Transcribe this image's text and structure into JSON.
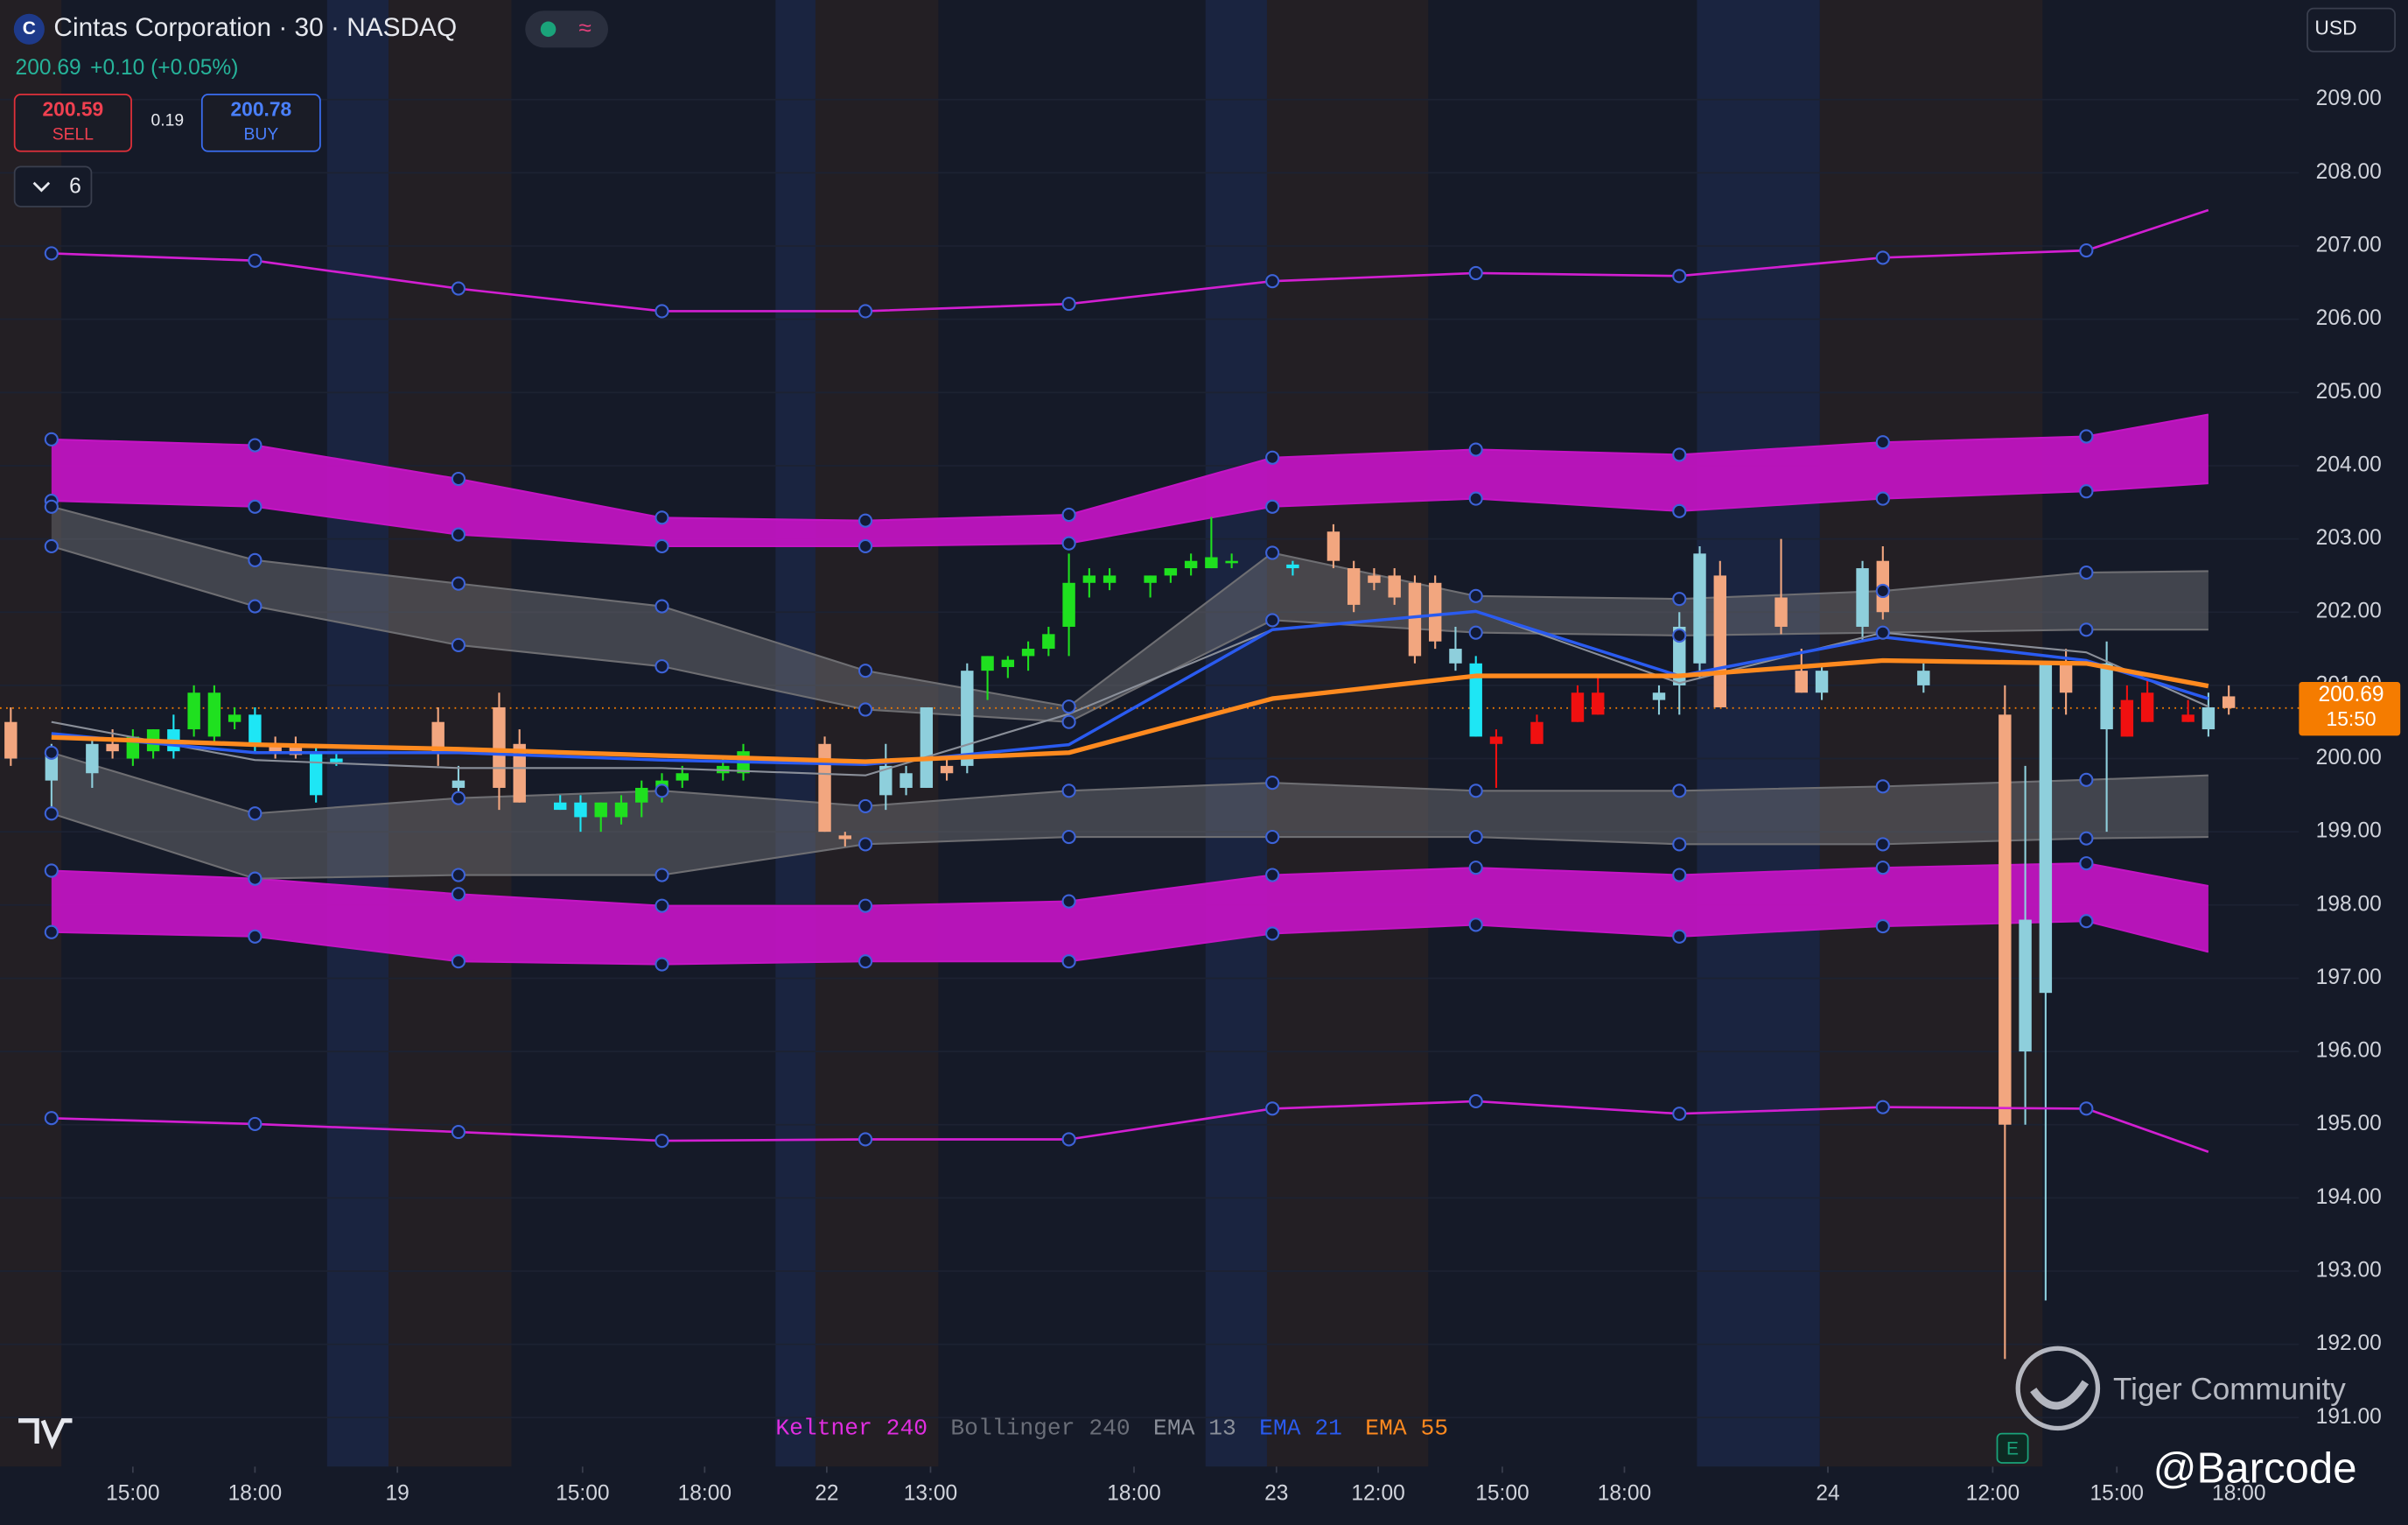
{
  "header": {
    "icon": "C",
    "title": "Cintas Corporation · 30 · NASDAQ",
    "change": "+0.10 (+0.05%)",
    "sell_price": 200.59,
    "sell_label": "SELL",
    "spread": 0.19,
    "buy_price": 200.78,
    "buy_label": "BUY",
    "indicator_count": 6,
    "currency": "USD"
  },
  "watermark": {
    "brand": "Tiger Community",
    "handle": "@Barcode",
    "event": "E"
  },
  "chart_data": {
    "type": "candlestick",
    "xlim": [
      -0.53,
      112.45
    ],
    "ylim": [
      190.33,
      210.36
    ],
    "yticks": [
      {
        "value": 209,
        "label": "209.00"
      },
      {
        "value": 208,
        "label": "208.00"
      },
      {
        "value": 207,
        "label": "207.00"
      },
      {
        "value": 206,
        "label": "206.00"
      },
      {
        "value": 205,
        "label": "205.00"
      },
      {
        "value": 204,
        "label": "204.00"
      },
      {
        "value": 203,
        "label": "203.00"
      },
      {
        "value": 202,
        "label": "202.00"
      },
      {
        "value": 201,
        "label": "201.00"
      },
      {
        "value": 200,
        "label": "200.00"
      },
      {
        "value": 199,
        "label": "199.00"
      },
      {
        "value": 198,
        "label": "198.00"
      },
      {
        "value": 197,
        "label": "197.00"
      },
      {
        "value": 196,
        "label": "196.00"
      },
      {
        "value": 195,
        "label": "195.00"
      },
      {
        "value": 194,
        "label": "194.00"
      },
      {
        "value": 193,
        "label": "193.00"
      },
      {
        "value": 192,
        "label": "192.00"
      },
      {
        "value": 191,
        "label": "191.00"
      }
    ],
    "xticks": [
      {
        "value": 6,
        "label": "15:00"
      },
      {
        "value": 12,
        "label": "18:00"
      },
      {
        "value": 19,
        "label": "19"
      },
      {
        "value": 28.1,
        "label": "15:00"
      },
      {
        "value": 34.1,
        "label": "18:00"
      },
      {
        "value": 40.1,
        "label": "22"
      },
      {
        "value": 45.2,
        "label": "13:00"
      },
      {
        "value": 55.2,
        "label": "18:00"
      },
      {
        "value": 62.2,
        "label": "23"
      },
      {
        "value": 67.2,
        "label": "12:00"
      },
      {
        "value": 73.3,
        "label": "15:00"
      },
      {
        "value": 79.3,
        "label": "18:00"
      },
      {
        "value": 89.3,
        "label": "24"
      },
      {
        "value": 97.4,
        "label": "12:00"
      },
      {
        "value": 103.5,
        "label": "15:00"
      },
      {
        "value": 109.5,
        "label": "18:00"
      }
    ],
    "grid": true,
    "candles": {
      "x": [
        0,
        2,
        4,
        5,
        6,
        7,
        8,
        9,
        10,
        11,
        12,
        13,
        14,
        15,
        16,
        21,
        22,
        24,
        25,
        27,
        28,
        29,
        30,
        31,
        32,
        33,
        35,
        36,
        40,
        41,
        43,
        44,
        45,
        46,
        47,
        48,
        49,
        50,
        51,
        52,
        53,
        54,
        56,
        57,
        58,
        59,
        60,
        63,
        65,
        66,
        67,
        68,
        69,
        70,
        71,
        72,
        73,
        75,
        77,
        78,
        81,
        82,
        83,
        84,
        87,
        88,
        89,
        91,
        92,
        94,
        98,
        99,
        100,
        101,
        103,
        104,
        105,
        107,
        108,
        109
      ],
      "open": [
        200.5,
        199.7,
        199.8,
        200.2,
        200.0,
        200.1,
        200.4,
        200.4,
        200.3,
        200.5,
        200.6,
        200.2,
        200.15,
        200.1,
        200.0,
        200.5,
        199.6,
        200.7,
        200.2,
        199.4,
        199.4,
        199.2,
        199.2,
        199.4,
        199.6,
        199.7,
        199.8,
        199.8,
        200.2,
        198.95,
        199.5,
        199.6,
        199.6,
        199.9,
        199.9,
        201.2,
        201.25,
        201.4,
        201.5,
        201.8,
        202.4,
        202.4,
        202.4,
        202.5,
        202.6,
        202.6,
        202.7,
        202.6,
        203.1,
        202.6,
        202.5,
        202.5,
        202.4,
        202.4,
        201.5,
        201.3,
        200.3,
        200.5,
        200.9,
        200.9,
        200.8,
        201.0,
        201.3,
        202.5,
        202.2,
        201.2,
        200.9,
        201.8,
        202.7,
        201.0,
        200.6,
        196.0,
        196.8,
        201.3,
        200.4,
        200.8,
        200.9,
        200.6,
        200.4,
        200.85
      ],
      "high": [
        200.7,
        200.2,
        200.3,
        200.4,
        200.4,
        200.4,
        200.6,
        201.0,
        201.0,
        200.7,
        200.7,
        200.3,
        200.3,
        200.2,
        200.1,
        200.7,
        199.9,
        200.9,
        200.4,
        199.5,
        199.5,
        199.4,
        199.5,
        199.7,
        199.8,
        199.9,
        200.0,
        200.2,
        200.3,
        199.0,
        200.2,
        199.9,
        200.7,
        200.0,
        201.3,
        201.4,
        201.4,
        201.6,
        201.8,
        202.8,
        202.6,
        202.6,
        202.5,
        202.6,
        202.8,
        203.3,
        202.8,
        202.7,
        203.2,
        202.7,
        202.6,
        202.6,
        202.5,
        202.5,
        201.8,
        201.4,
        200.4,
        200.6,
        201.0,
        201.1,
        201.0,
        202.0,
        202.9,
        202.7,
        203.0,
        201.5,
        201.3,
        202.7,
        202.9,
        201.3,
        201.0,
        199.9,
        201.3,
        201.5,
        201.6,
        201.0,
        201.1,
        200.8,
        200.9,
        201.0
      ],
      "low": [
        199.9,
        199.3,
        199.6,
        200.0,
        199.9,
        200.0,
        200.0,
        200.3,
        200.2,
        200.4,
        200.1,
        200.0,
        200.0,
        199.4,
        199.9,
        199.9,
        199.5,
        199.3,
        199.4,
        199.3,
        199.0,
        199.0,
        199.1,
        199.2,
        199.4,
        199.6,
        199.7,
        199.7,
        199.0,
        198.8,
        199.3,
        199.5,
        199.6,
        199.7,
        199.8,
        200.8,
        201.1,
        201.2,
        201.4,
        201.4,
        202.2,
        202.3,
        202.2,
        202.4,
        202.5,
        202.6,
        202.6,
        202.5,
        202.6,
        202.0,
        202.3,
        202.1,
        201.3,
        201.5,
        201.2,
        200.3,
        199.6,
        200.2,
        200.5,
        200.6,
        200.6,
        200.6,
        201.1,
        200.7,
        201.7,
        200.9,
        200.8,
        201.6,
        201.9,
        200.9,
        191.8,
        195.0,
        192.6,
        200.6,
        199.0,
        200.3,
        200.5,
        200.5,
        200.3,
        200.6
      ],
      "close": [
        200.0,
        200.1,
        200.2,
        200.1,
        200.3,
        200.4,
        200.1,
        200.9,
        200.9,
        200.6,
        200.2,
        200.1,
        200.05,
        199.5,
        199.95,
        200.1,
        199.7,
        199.6,
        199.4,
        199.3,
        199.2,
        199.4,
        199.4,
        199.6,
        199.7,
        199.8,
        199.9,
        200.1,
        199.0,
        198.9,
        199.9,
        199.8,
        200.7,
        199.8,
        201.2,
        201.4,
        201.35,
        201.5,
        201.7,
        202.4,
        202.5,
        202.5,
        202.5,
        202.6,
        202.7,
        202.75,
        202.7,
        202.65,
        202.7,
        202.1,
        202.4,
        202.2,
        201.4,
        201.6,
        201.3,
        200.3,
        200.2,
        200.2,
        200.5,
        200.6,
        200.9,
        201.8,
        202.8,
        200.7,
        201.8,
        200.9,
        201.2,
        202.6,
        202.0,
        201.2,
        195.0,
        197.8,
        201.3,
        200.9,
        201.3,
        200.3,
        200.5,
        200.5,
        200.7,
        200.69
      ],
      "colors": [
        "#f2a67f",
        "#8ecfdc",
        "#8ecfdc",
        "#f2a67f",
        "#1fe01f",
        "#1fe01f",
        "#1ee6f5",
        "#1fe01f",
        "#1fe01f",
        "#1fe01f",
        "#1ee6f5",
        "#f2a67f",
        "#f2a67f",
        "#1ee6f5",
        "#1ee6f5",
        "#f2a67f",
        "#8ecfdc",
        "#f2a67f",
        "#f2a67f",
        "#1ee6f5",
        "#1ee6f5",
        "#1fe01f",
        "#1fe01f",
        "#1fe01f",
        "#1fe01f",
        "#1fe01f",
        "#1fe01f",
        "#1fe01f",
        "#f2a67f",
        "#f2a67f",
        "#8ecfdc",
        "#8ecfdc",
        "#8ecfdc",
        "#f2a67f",
        "#8ecfdc",
        "#1fe01f",
        "#1fe01f",
        "#1fe01f",
        "#1fe01f",
        "#1fe01f",
        "#1fe01f",
        "#1fe01f",
        "#1fe01f",
        "#1fe01f",
        "#1fe01f",
        "#1fe01f",
        "#1fe01f",
        "#1ee6f5",
        "#f2a67f",
        "#f2a67f",
        "#f2a67f",
        "#f2a67f",
        "#f2a67f",
        "#f2a67f",
        "#8ecfdc",
        "#1ee6f5",
        "#f01010",
        "#f01010",
        "#f01010",
        "#f01010",
        "#8ecfdc",
        "#8ecfdc",
        "#8ecfdc",
        "#f2a67f",
        "#f2a67f",
        "#f2a67f",
        "#8ecfdc",
        "#8ecfdc",
        "#f2a67f",
        "#8ecfdc",
        "#f2a67f",
        "#8ecfdc",
        "#8ecfdc",
        "#f2a67f",
        "#8ecfdc",
        "#f01010",
        "#f01010",
        "#f01010",
        "#8ecfdc",
        "#f2a67f"
      ]
    },
    "line_x": [
      2,
      12,
      22,
      32,
      42,
      52,
      62,
      72,
      82,
      92,
      102,
      108
    ],
    "bands": [
      {
        "color": "#c414c4",
        "opacity": 0.92,
        "upper": [
          204.36,
          204.28,
          203.82,
          203.29,
          203.25,
          203.33,
          204.11,
          204.22,
          204.15,
          204.32,
          204.4,
          204.7
        ],
        "lower": [
          203.52,
          203.44,
          203.06,
          202.9,
          202.9,
          202.94,
          203.44,
          203.55,
          203.38,
          203.55,
          203.65,
          203.76
        ]
      },
      {
        "color": "#c414c4",
        "opacity": 0.92,
        "upper": [
          198.47,
          198.36,
          198.15,
          197.99,
          197.99,
          198.05,
          198.41,
          198.51,
          198.41,
          198.51,
          198.57,
          198.26
        ],
        "lower": [
          197.63,
          197.57,
          197.23,
          197.19,
          197.23,
          197.23,
          197.61,
          197.73,
          197.57,
          197.71,
          197.78,
          197.36
        ]
      },
      {
        "color": "#6e6e72",
        "opacity": 0.5,
        "upper": [
          203.44,
          202.71,
          202.39,
          202.08,
          201.2,
          200.71,
          202.81,
          202.22,
          202.18,
          202.29,
          202.54,
          202.56
        ],
        "lower": [
          202.9,
          202.08,
          201.55,
          201.26,
          200.67,
          200.5,
          201.89,
          201.72,
          201.68,
          201.72,
          201.76,
          201.76
        ]
      },
      {
        "color": "#6e6e72",
        "opacity": 0.5,
        "upper": [
          200.08,
          199.25,
          199.46,
          199.56,
          199.35,
          199.56,
          199.67,
          199.56,
          199.56,
          199.62,
          199.71,
          199.77
        ],
        "lower": [
          199.25,
          198.36,
          198.41,
          198.41,
          198.83,
          198.93,
          198.93,
          198.93,
          198.83,
          198.83,
          198.91,
          198.93
        ]
      }
    ],
    "lines": [
      {
        "color": "#d21fd2",
        "width": 1.5,
        "values": [
          206.9,
          206.8,
          206.42,
          206.11,
          206.11,
          206.21,
          206.52,
          206.63,
          206.59,
          206.84,
          206.94,
          207.49
        ]
      },
      {
        "color": "#d21fd2",
        "width": 1.5,
        "values": [
          195.09,
          195.01,
          194.9,
          194.78,
          194.8,
          194.8,
          195.22,
          195.32,
          195.15,
          195.24,
          195.22,
          194.63
        ]
      },
      {
        "color": "#8a8f99",
        "width": 1.2,
        "values": [
          200.5,
          199.98,
          199.87,
          199.87,
          199.77,
          200.61,
          201.76,
          202.01,
          201.03,
          201.72,
          201.45,
          200.71
        ]
      },
      {
        "color": "#2a5bf0",
        "width": 2,
        "values": [
          200.34,
          200.08,
          200.08,
          199.98,
          199.92,
          200.19,
          201.76,
          202.01,
          201.13,
          201.66,
          201.34,
          200.82
        ]
      },
      {
        "color": "#ff8a1f",
        "width": 3,
        "values": [
          200.29,
          200.19,
          200.13,
          200.04,
          199.96,
          200.08,
          200.82,
          201.13,
          201.13,
          201.34,
          201.3,
          200.99
        ]
      }
    ],
    "legend": [
      {
        "label": "Keltner",
        "param": 240,
        "color": "#e02ee0"
      },
      {
        "label": "Bollinger",
        "param": 240,
        "color": "#6a6e78"
      },
      {
        "label": "EMA",
        "param": 13,
        "color": "#8a8f99"
      },
      {
        "label": "EMA",
        "param": 21,
        "color": "#2a5bf0"
      },
      {
        "label": "EMA",
        "param": 55,
        "color": "#ff8a1f"
      }
    ],
    "last_price": 200.69,
    "last_time": "15:50",
    "last_color": "#f57c00"
  }
}
